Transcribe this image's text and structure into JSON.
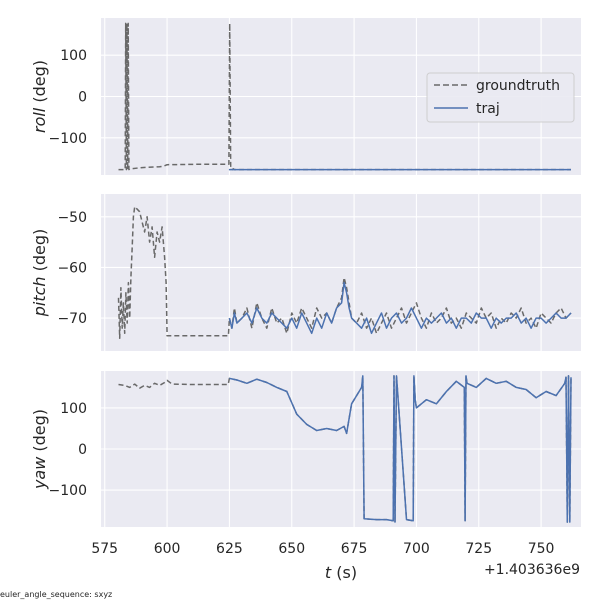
{
  "chart_data": [
    {
      "type": "line",
      "ylabel_var": "roll",
      "ylabel_unit": " (deg)",
      "ylim": [
        -190,
        190
      ],
      "yticks": [
        100,
        0,
        -100
      ],
      "ytick_labels": [
        "100",
        "0",
        "−100"
      ],
      "legend": {
        "placement": "right",
        "entries": [
          "groundtruth",
          "traj"
        ]
      },
      "series": [
        {
          "name": "groundtruth",
          "style": "dashed",
          "color": "#696969",
          "x": [
            580.5,
            583.2,
            583.4,
            583.7,
            583.9,
            584.2,
            584.4,
            584.7,
            585,
            585.3,
            590,
            597,
            598.5,
            600,
            612,
            624.8,
            625.1,
            625.5,
            626.2,
            626.6,
            627,
            630,
            640,
            650,
            660,
            670,
            680,
            690,
            700,
            710,
            720,
            730,
            740,
            750,
            760,
            762
          ],
          "y": [
            -177,
            -177,
            177,
            -177,
            177,
            -177,
            177,
            -177,
            -175,
            -175,
            -172,
            -170,
            -169,
            -165,
            -164,
            -164,
            177,
            -175,
            -177,
            -175,
            -177,
            -177,
            -177,
            -177,
            -177,
            -177,
            -177,
            -177,
            -177,
            -177,
            -177,
            -177,
            -177,
            -177,
            -177,
            -177
          ]
        },
        {
          "name": "traj",
          "style": "solid",
          "color": "#4c72b0",
          "x": [
            624.8,
            626,
            627,
            640,
            650,
            660,
            670,
            680,
            690,
            700,
            710,
            720,
            730,
            740,
            750,
            760,
            762
          ],
          "y": [
            -177,
            -177,
            -177,
            -177,
            -177,
            -177,
            -177,
            -177,
            -177,
            -177,
            -177,
            -177,
            -177,
            -177,
            -177,
            -177,
            -177
          ]
        }
      ]
    },
    {
      "type": "line",
      "ylabel_var": "pitch",
      "ylabel_unit": " (deg)",
      "ylim": [
        -76.5,
        -45.5
      ],
      "yticks": [
        -50,
        -60,
        -70
      ],
      "ytick_labels": [
        "−50",
        "−60",
        "−70"
      ],
      "series": [
        {
          "name": "groundtruth",
          "style": "dashed",
          "color": "#696969",
          "x": [
            580.5,
            581,
            581.5,
            582,
            582.5,
            583,
            583.5,
            584,
            584.5,
            585,
            585.5,
            586,
            586.5,
            587,
            588,
            589,
            590,
            591,
            592,
            593,
            594,
            595,
            596,
            597,
            598,
            599,
            599.6,
            600,
            605,
            610,
            615,
            620,
            624.6,
            625,
            626,
            627,
            628,
            630,
            632,
            634,
            636,
            638,
            640,
            642,
            644,
            646,
            648,
            650,
            652,
            654,
            656,
            658,
            660,
            662,
            664,
            666,
            668,
            670,
            671,
            672,
            673,
            674,
            676,
            678,
            680,
            682,
            684,
            686,
            688,
            690,
            692,
            694,
            696,
            698,
            700,
            702,
            704,
            706,
            708,
            710,
            712,
            714,
            716,
            718,
            720,
            722,
            724,
            726,
            728,
            730,
            732,
            734,
            736,
            738,
            740,
            742,
            744,
            746,
            748,
            750,
            752,
            754,
            756,
            758,
            760,
            762
          ],
          "y": [
            -66,
            -74,
            -64,
            -72,
            -67,
            -73,
            -65,
            -71,
            -63,
            -70,
            -62,
            -56,
            -50,
            -48,
            -48.5,
            -49,
            -51,
            -53,
            -50,
            -55,
            -52,
            -58,
            -53,
            -55,
            -52,
            -58,
            -63,
            -73.5,
            -73.5,
            -73.5,
            -73.5,
            -73.5,
            -73.5,
            -70,
            -72,
            -68,
            -71,
            -70,
            -68,
            -72,
            -67,
            -70,
            -72,
            -68,
            -71,
            -70,
            -73,
            -69,
            -71,
            -68,
            -70,
            -72,
            -68,
            -70,
            -69,
            -71,
            -68,
            -66,
            -62,
            -64,
            -67,
            -70,
            -71,
            -69,
            -72,
            -70,
            -73,
            -71,
            -69,
            -72,
            -70,
            -68,
            -71,
            -69,
            -67,
            -70,
            -72,
            -69,
            -71,
            -70,
            -68,
            -71,
            -70,
            -72,
            -69,
            -70,
            -71,
            -68,
            -70,
            -69,
            -72,
            -70,
            -71,
            -69,
            -70,
            -68,
            -71,
            -70,
            -72,
            -69,
            -70,
            -71,
            -69,
            -68,
            -70,
            -69
          ]
        },
        {
          "name": "traj",
          "style": "solid",
          "color": "#4c72b0",
          "x": [
            625,
            626,
            627,
            628,
            630,
            632,
            634,
            636,
            638,
            640,
            642,
            644,
            646,
            648,
            650,
            652,
            654,
            656,
            658,
            660,
            662,
            664,
            666,
            668,
            670,
            671,
            672,
            673,
            674,
            676,
            678,
            680,
            682,
            684,
            686,
            688,
            690,
            692,
            694,
            696,
            698,
            700,
            702,
            704,
            706,
            708,
            710,
            712,
            714,
            716,
            718,
            720,
            722,
            724,
            726,
            728,
            730,
            732,
            734,
            736,
            738,
            740,
            742,
            744,
            746,
            748,
            750,
            752,
            754,
            756,
            758,
            760,
            762
          ],
          "y": [
            -70,
            -72,
            -69,
            -71,
            -70,
            -69,
            -71,
            -68,
            -70,
            -71,
            -69,
            -70,
            -71,
            -72,
            -70,
            -72,
            -69,
            -71,
            -73,
            -70,
            -72,
            -69,
            -71,
            -68,
            -67,
            -63,
            -65,
            -68,
            -70,
            -71,
            -72,
            -70,
            -73,
            -71,
            -69,
            -72,
            -70,
            -69,
            -71,
            -70,
            -68,
            -70,
            -72,
            -70,
            -71,
            -70,
            -69,
            -71,
            -70,
            -72,
            -70,
            -70,
            -71,
            -69,
            -70,
            -70,
            -72,
            -70,
            -71,
            -70,
            -70,
            -69,
            -71,
            -70,
            -72,
            -70,
            -70,
            -71,
            -70,
            -69,
            -70,
            -70,
            -69
          ]
        }
      ]
    },
    {
      "type": "line",
      "ylabel_var": "yaw",
      "ylabel_unit": " (deg)",
      "ylim": [
        -190,
        190
      ],
      "yticks": [
        100,
        0,
        -100
      ],
      "ytick_labels": [
        "100",
        "0",
        "−100"
      ],
      "xlabel_var": "t",
      "xlabel_unit": " (s)",
      "xlim": [
        573.5,
        766
      ],
      "xticks": [
        575,
        600,
        625,
        650,
        675,
        700,
        725,
        750
      ],
      "xtick_labels": [
        "575",
        "600",
        "625",
        "650",
        "675",
        "700",
        "725",
        "750"
      ],
      "x_offset_label": "+1.403636e9",
      "series": [
        {
          "name": "groundtruth",
          "style": "dashed",
          "color": "#696969",
          "x": [
            580.5,
            583,
            585,
            587,
            589,
            591,
            593,
            595,
            597,
            599,
            600,
            602,
            610,
            620,
            624.5,
            625,
            628,
            632,
            636,
            640,
            644,
            648,
            652,
            656,
            660,
            664,
            668,
            671,
            672,
            674,
            676,
            678,
            678.5,
            679,
            684,
            688,
            690.7,
            691,
            691.4,
            692,
            696,
            698.7,
            699,
            699.5,
            700,
            704,
            708,
            712,
            716,
            719.2,
            719.5,
            719.9,
            720.3,
            724,
            728,
            732,
            736,
            740,
            744,
            748,
            752,
            756,
            759.5,
            760,
            760.5,
            761,
            761.5,
            762
          ],
          "y": [
            157,
            155,
            150,
            158,
            148,
            155,
            150,
            160,
            155,
            162,
            167,
            158,
            157,
            157,
            157,
            172,
            168,
            160,
            170,
            162,
            150,
            140,
            85,
            60,
            45,
            50,
            45,
            55,
            38,
            110,
            130,
            150,
            178,
            -170,
            -172,
            -172,
            -175,
            178,
            -178,
            178,
            -172,
            -175,
            178,
            120,
            100,
            120,
            110,
            140,
            165,
            150,
            -175,
            178,
            160,
            150,
            172,
            160,
            165,
            150,
            145,
            125,
            140,
            130,
            160,
            175,
            -178,
            178,
            -178,
            175
          ]
        },
        {
          "name": "traj",
          "style": "solid",
          "color": "#4c72b0",
          "x": [
            625,
            628,
            632,
            636,
            640,
            644,
            648,
            652,
            656,
            660,
            664,
            668,
            671,
            672,
            674,
            676,
            678,
            678.5,
            679,
            684,
            688,
            690.7,
            691,
            691.4,
            692,
            696,
            698.7,
            699,
            699.5,
            700,
            704,
            708,
            712,
            716,
            719.2,
            719.5,
            719.9,
            720.3,
            724,
            728,
            732,
            736,
            740,
            744,
            748,
            752,
            756,
            759.5,
            760,
            760.5,
            761,
            761.5,
            762
          ],
          "y": [
            172,
            168,
            160,
            170,
            162,
            150,
            140,
            85,
            60,
            45,
            50,
            45,
            55,
            38,
            110,
            130,
            150,
            178,
            -170,
            -172,
            -172,
            -175,
            178,
            -178,
            178,
            -172,
            -175,
            178,
            120,
            100,
            120,
            110,
            140,
            165,
            150,
            -175,
            178,
            160,
            150,
            172,
            160,
            165,
            150,
            145,
            125,
            140,
            130,
            160,
            175,
            -178,
            178,
            -178,
            175
          ]
        }
      ]
    }
  ],
  "footer": {
    "caption": "euler_angle_sequence: sxyz"
  },
  "colors": {
    "axes_bg": "#eaeaf2",
    "grid": "#ffffff",
    "groundtruth": "#696969",
    "traj": "#4c72b0",
    "text": "#262626"
  }
}
